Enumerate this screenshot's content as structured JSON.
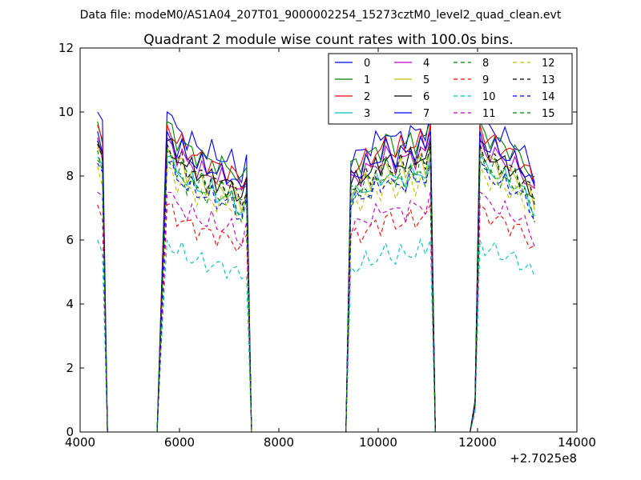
{
  "header": {
    "data_file": "Data file: modeM0/AS1A04_207T01_9000002254_15273cztM0_level2_quad_clean.evt"
  },
  "colors": {
    "palette": [
      "#0000ff",
      "#008000",
      "#ff0000",
      "#00bfbf",
      "#bf00bf",
      "#bfbf00",
      "#000000"
    ]
  },
  "chart_data": {
    "type": "line",
    "title": "Quadrant 2 module wise count rates with 100.0s bins.",
    "xlabel": "",
    "ylabel": "",
    "xlim": [
      4000,
      14000
    ],
    "ylim": [
      0,
      12
    ],
    "x_ticks": [
      4000,
      6000,
      8000,
      10000,
      12000,
      14000
    ],
    "y_ticks": [
      0,
      2,
      4,
      6,
      8,
      10,
      12
    ],
    "x_offset_label": "+2.7025e8",
    "grid": false,
    "legend_position": "top-right",
    "legend_columns": 4,
    "x": [
      4350,
      4450,
      4550,
      4650,
      4750,
      4850,
      4950,
      5050,
      5150,
      5250,
      5350,
      5450,
      5550,
      5650,
      5750,
      5850,
      5950,
      6050,
      6150,
      6250,
      6350,
      6450,
      6550,
      6650,
      6750,
      6850,
      6950,
      7050,
      7150,
      7250,
      7350,
      7450,
      7550,
      7650,
      7750,
      7850,
      7950,
      8050,
      8150,
      8250,
      8350,
      8450,
      8550,
      8650,
      8750,
      8850,
      8950,
      9050,
      9150,
      9250,
      9350,
      9450,
      9550,
      9650,
      9750,
      9850,
      9950,
      10050,
      10150,
      10250,
      10350,
      10450,
      10550,
      10650,
      10750,
      10850,
      10950,
      11050,
      11150,
      11250,
      11350,
      11450,
      11550,
      11650,
      11750,
      11850,
      11950,
      12050,
      12150,
      12250,
      12350,
      12450,
      12550,
      12650,
      12750,
      12850,
      12950,
      13050,
      13150
    ],
    "segments": [
      {
        "start": 4350,
        "end": 4550,
        "shape": [
          1.0,
          0.95,
          0.0
        ]
      },
      {
        "start": 5550,
        "end": 7450,
        "shape": [
          0.0,
          0.5,
          1.0,
          0.98,
          0.93,
          0.95,
          0.9,
          0.92,
          0.88,
          0.9,
          0.86,
          0.89,
          0.85,
          0.87,
          0.84,
          0.86,
          0.82,
          0.8,
          0.85,
          0.0
        ]
      },
      {
        "start": 9350,
        "end": 11150,
        "shape": [
          0.0,
          0.85,
          0.87,
          0.86,
          0.9,
          0.88,
          0.92,
          0.9,
          0.95,
          0.93,
          0.9,
          0.94,
          0.91,
          0.95,
          0.92,
          0.96,
          0.93,
          1.0,
          0.0
        ]
      },
      {
        "start": 11850,
        "end": 13150,
        "shape": [
          0.0,
          0.1,
          1.0,
          0.96,
          0.94,
          0.95,
          0.92,
          0.93,
          0.9,
          0.91,
          0.88,
          0.87,
          0.84,
          0.8
        ]
      }
    ],
    "series": [
      {
        "name": "0",
        "level": 10.0,
        "style": "solid",
        "color": "#0000ff"
      },
      {
        "name": "1",
        "level": 9.7,
        "style": "solid",
        "color": "#008000"
      },
      {
        "name": "2",
        "level": 9.6,
        "style": "solid",
        "color": "#ff0000"
      },
      {
        "name": "3",
        "level": 8.6,
        "style": "solid",
        "color": "#00bfbf"
      },
      {
        "name": "4",
        "level": 9.2,
        "style": "solid",
        "color": "#bf00bf"
      },
      {
        "name": "5",
        "level": 8.9,
        "style": "solid",
        "color": "#bfbf00"
      },
      {
        "name": "6",
        "level": 9.1,
        "style": "solid",
        "color": "#000000"
      },
      {
        "name": "7",
        "level": 9.4,
        "style": "solid",
        "color": "#0000ff"
      },
      {
        "name": "8",
        "level": 8.5,
        "style": "dashed",
        "color": "#008000"
      },
      {
        "name": "9",
        "level": 7.1,
        "style": "dashed",
        "color": "#ff0000"
      },
      {
        "name": "10",
        "level": 6.0,
        "style": "dashed",
        "color": "#00bfbf"
      },
      {
        "name": "11",
        "level": 7.5,
        "style": "dashed",
        "color": "#bf00bf"
      },
      {
        "name": "12",
        "level": 8.3,
        "style": "dashed",
        "color": "#bfbf00"
      },
      {
        "name": "13",
        "level": 9.0,
        "style": "dashed",
        "color": "#000000"
      },
      {
        "name": "14",
        "level": 8.4,
        "style": "dashed",
        "color": "#0000ff"
      },
      {
        "name": "15",
        "level": 8.8,
        "style": "dashed",
        "color": "#008000"
      }
    ]
  }
}
